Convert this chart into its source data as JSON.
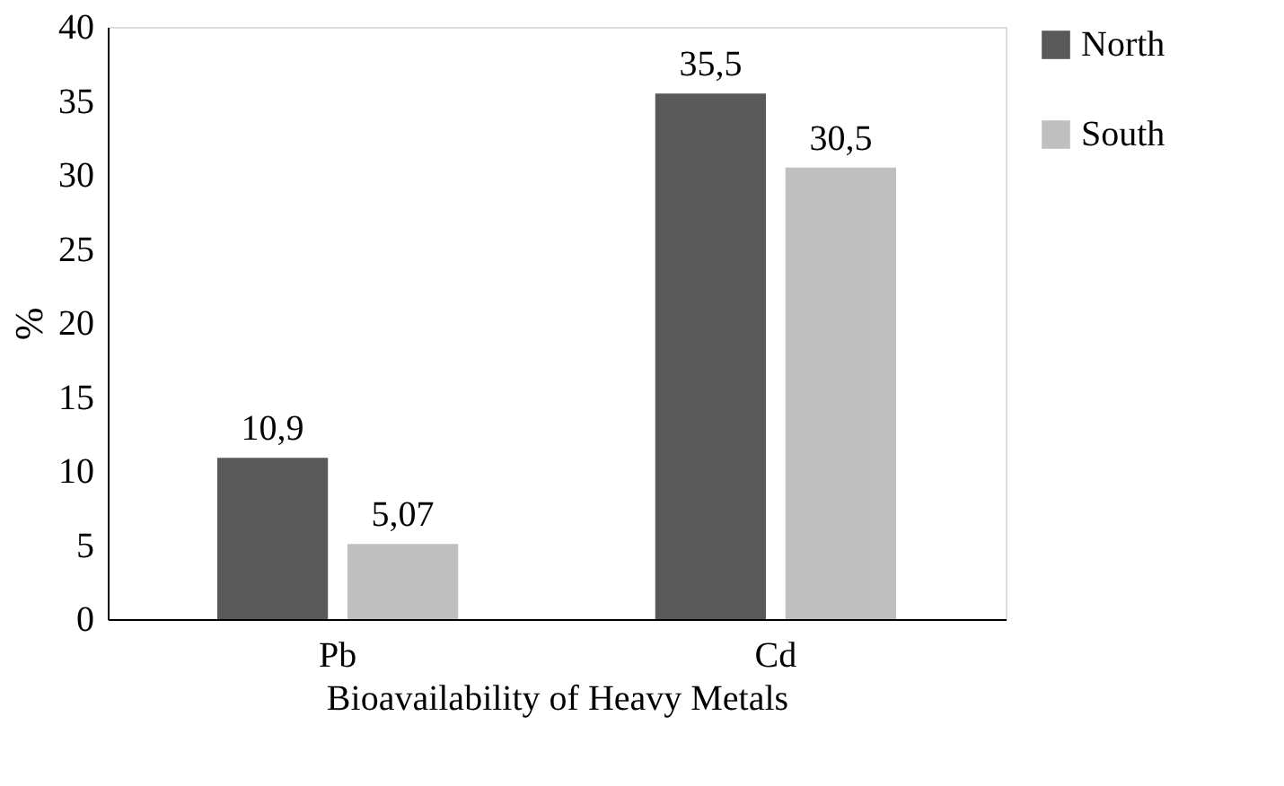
{
  "chart_data": {
    "type": "bar",
    "xlabel": "Bioavailability of Heavy Metals",
    "ylabel": "%",
    "categories": [
      "Pb",
      "Cd"
    ],
    "series": [
      {
        "name": "North",
        "color": "#595959",
        "values": [
          10.9,
          35.5
        ],
        "value_labels": [
          "10,9",
          "35,5"
        ]
      },
      {
        "name": "South",
        "color": "#bfbfbf",
        "values": [
          5.07,
          30.5
        ],
        "value_labels": [
          "5,07",
          "30,5"
        ]
      }
    ],
    "ylim": [
      0,
      40
    ],
    "yticks": [
      0,
      5,
      10,
      15,
      20,
      25,
      30,
      35,
      40
    ],
    "grid": false,
    "legend": "right"
  }
}
